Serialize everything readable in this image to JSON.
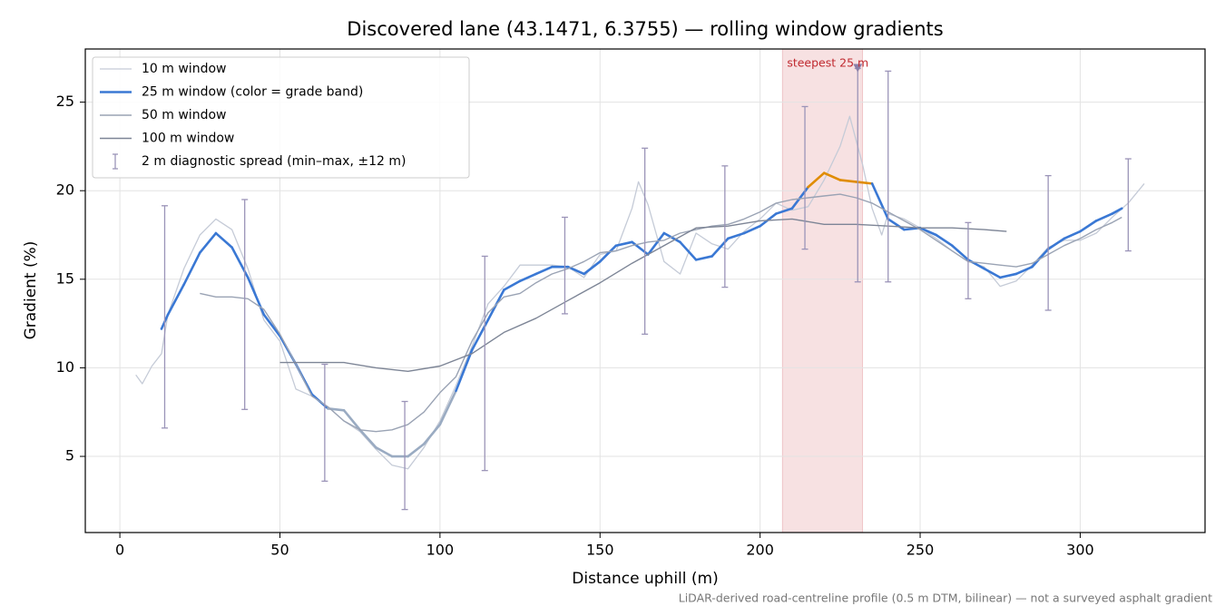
{
  "chart_data": {
    "type": "line",
    "title": "Discovered lane (43.1471, 6.3755) — rolling window gradients",
    "x_label": "Distance uphill (m)",
    "y_label": "Gradient (%)",
    "footnote": "LiDAR-derived road-centreline profile (0.5 m DTM, bilinear) — not a surveyed asphalt gradient",
    "xlim": [
      -10.8,
      339
    ],
    "ylim": [
      0.7,
      28.0
    ],
    "xticks": [
      0,
      50,
      100,
      150,
      200,
      250,
      300
    ],
    "yticks": [
      5,
      10,
      15,
      20,
      25
    ],
    "grid": true,
    "legend": "upper left",
    "highlight": {
      "xlim": [
        207,
        232
      ],
      "color": "#e8a9ad",
      "label": "steepest 25 m",
      "label_color": "#c0292f",
      "marker_x": 230.5,
      "marker_y": 26.9,
      "marker_color": "#8a7fa8"
    },
    "series": [
      {
        "name": "10 m window",
        "kind": "line",
        "color": "#c5cbd7",
        "width": 1.3,
        "x": [
          5,
          7,
          10,
          13,
          15,
          20,
          25,
          30,
          35,
          40,
          45,
          50,
          55,
          60,
          65,
          70,
          75,
          80,
          85,
          90,
          95,
          100,
          105,
          110,
          115,
          120,
          125,
          130,
          135,
          140,
          145,
          150,
          155,
          160,
          162,
          165,
          170,
          175,
          180,
          185,
          190,
          195,
          200,
          205,
          210,
          215,
          220,
          225,
          228,
          232,
          235,
          238,
          240,
          245,
          250,
          255,
          260,
          265,
          270,
          275,
          280,
          285,
          290,
          295,
          300,
          305,
          310,
          315,
          320
        ],
        "values": [
          9.6,
          9.1,
          10.1,
          10.8,
          13,
          15.6,
          17.5,
          18.4,
          17.8,
          15.6,
          12.7,
          11.5,
          8.8,
          8.4,
          7.8,
          7.0,
          6.4,
          5.4,
          4.5,
          4.3,
          5.5,
          7.0,
          9.0,
          11.2,
          13.6,
          14.6,
          15.8,
          15.8,
          15.8,
          15.7,
          15.1,
          16.4,
          16.6,
          19.0,
          20.5,
          19.2,
          16.0,
          15.3,
          17.6,
          17.0,
          16.7,
          17.7,
          18.4,
          19.3,
          18.9,
          19.1,
          20.6,
          22.5,
          24.2,
          21.5,
          19.0,
          17.5,
          18.7,
          18.4,
          17.9,
          17.3,
          16.6,
          16.0,
          15.7,
          14.6,
          14.9,
          15.8,
          16.8,
          17.2,
          17.2,
          17.6,
          18.5,
          19.3,
          20.4
        ]
      },
      {
        "name": "25 m window (color = grade band)",
        "kind": "line",
        "color": "#3a78d4",
        "width": 2.6,
        "band_edges": [
          8,
          20
        ],
        "band_colors": [
          "#9aabc2",
          "#3a78d4",
          "#e08c00"
        ],
        "x": [
          13,
          15,
          20,
          25,
          30,
          35,
          40,
          45,
          50,
          55,
          60,
          65,
          70,
          75,
          80,
          85,
          90,
          95,
          100,
          105,
          110,
          115,
          120,
          125,
          130,
          135,
          140,
          145,
          150,
          155,
          160,
          165,
          170,
          175,
          180,
          185,
          190,
          195,
          200,
          205,
          210,
          215,
          220,
          225,
          230,
          235,
          240,
          245,
          250,
          255,
          260,
          265,
          270,
          275,
          280,
          285,
          290,
          295,
          300,
          305,
          310,
          313
        ],
        "values": [
          12.2,
          13,
          14.7,
          16.5,
          17.6,
          16.8,
          15.1,
          13,
          11.8,
          10.2,
          8.5,
          7.7,
          7.6,
          6.5,
          5.5,
          5.0,
          5.0,
          5.7,
          6.8,
          8.7,
          11.0,
          12.7,
          14.4,
          14.9,
          15.3,
          15.7,
          15.7,
          15.3,
          16.0,
          16.9,
          17.1,
          16.4,
          17.6,
          17.1,
          16.1,
          16.3,
          17.3,
          17.6,
          18.0,
          18.7,
          19.0,
          20.2,
          21.0,
          20.6,
          20.5,
          20.4,
          18.4,
          17.8,
          17.9,
          17.5,
          16.9,
          16.1,
          15.6,
          15.1,
          15.3,
          15.7,
          16.7,
          17.3,
          17.7,
          18.3,
          18.7,
          19.0
        ]
      },
      {
        "name": "50 m window",
        "kind": "line",
        "color": "#9aa3b4",
        "width": 1.4,
        "x": [
          25,
          30,
          35,
          40,
          45,
          50,
          55,
          60,
          65,
          70,
          75,
          80,
          85,
          90,
          95,
          100,
          105,
          110,
          115,
          120,
          125,
          130,
          135,
          140,
          145,
          150,
          155,
          160,
          165,
          170,
          175,
          180,
          185,
          190,
          195,
          200,
          205,
          210,
          215,
          220,
          225,
          230,
          235,
          240,
          245,
          250,
          255,
          260,
          265,
          270,
          275,
          280,
          285,
          290,
          295,
          300,
          305,
          310,
          313
        ],
        "values": [
          14.2,
          14.0,
          14.0,
          13.9,
          13.3,
          11.9,
          10.2,
          8.4,
          7.8,
          7.0,
          6.5,
          6.4,
          6.5,
          6.8,
          7.5,
          8.6,
          9.5,
          11.5,
          13.1,
          14.0,
          14.2,
          14.8,
          15.3,
          15.6,
          16.0,
          16.5,
          16.6,
          16.9,
          17.1,
          17.2,
          17.6,
          17.8,
          18.0,
          18.1,
          18.4,
          18.8,
          19.3,
          19.5,
          19.6,
          19.7,
          19.8,
          19.6,
          19.3,
          18.8,
          18.3,
          17.8,
          17.2,
          16.6,
          16.0,
          15.9,
          15.8,
          15.7,
          15.9,
          16.4,
          16.9,
          17.3,
          17.8,
          18.2,
          18.5
        ]
      },
      {
        "name": "100 m window",
        "kind": "line",
        "color": "#7d8596",
        "width": 1.4,
        "x": [
          50,
          60,
          70,
          80,
          90,
          100,
          110,
          120,
          130,
          140,
          150,
          160,
          170,
          180,
          190,
          200,
          210,
          220,
          230,
          240,
          250,
          260,
          270,
          277
        ],
        "values": [
          10.3,
          10.3,
          10.3,
          10.0,
          9.8,
          10.1,
          10.8,
          12.0,
          12.8,
          13.8,
          14.8,
          15.9,
          16.9,
          17.9,
          18.0,
          18.3,
          18.4,
          18.1,
          18.1,
          18.0,
          17.9,
          17.9,
          17.8,
          17.7
        ]
      },
      {
        "name": "2 m diagnostic spread (min–max, ±12 m)",
        "kind": "errorbar",
        "color": "#9b94b8",
        "x": [
          14,
          39,
          64,
          89,
          114,
          139,
          164,
          189,
          214,
          230.5,
          240,
          265,
          290,
          315
        ],
        "low": [
          6.6,
          7.65,
          3.6,
          2.0,
          4.2,
          13.05,
          11.9,
          14.55,
          16.7,
          14.85,
          14.85,
          13.9,
          13.25,
          16.6
        ],
        "high": [
          19.15,
          19.5,
          10.2,
          8.1,
          16.3,
          18.5,
          22.4,
          21.4,
          24.75,
          26.9,
          26.75,
          18.2,
          20.85,
          21.8
        ]
      }
    ]
  }
}
